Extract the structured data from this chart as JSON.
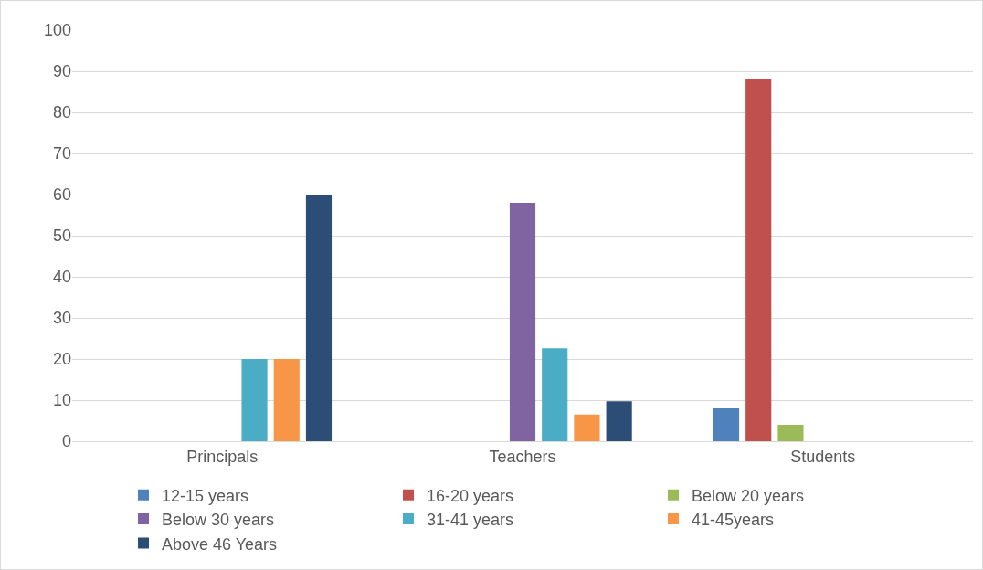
{
  "chart_data": {
    "type": "bar",
    "categories": [
      "Principals",
      "Teachers",
      "Students"
    ],
    "series": [
      {
        "name": "12-15 years",
        "color": "#4f81bd",
        "values": [
          0,
          0,
          8
        ]
      },
      {
        "name": "16-20 years",
        "color": "#c0504d",
        "values": [
          0,
          0,
          88
        ]
      },
      {
        "name": "Below 20 years",
        "color": "#9bbb59",
        "values": [
          0,
          0,
          4
        ]
      },
      {
        "name": "Below 30 years",
        "color": "#8064a2",
        "values": [
          0,
          58,
          0
        ]
      },
      {
        "name": "31-41 years",
        "color": "#4bacc6",
        "values": [
          20,
          22.6,
          0
        ]
      },
      {
        "name": "41-45years",
        "color": "#f79646",
        "values": [
          20,
          6.5,
          0
        ]
      },
      {
        "name": "Above 46 Years",
        "color": "#2c4d75",
        "values": [
          60,
          9.7,
          0
        ]
      }
    ],
    "ylim": [
      0,
      100
    ],
    "yticks": [
      0,
      10,
      20,
      30,
      40,
      50,
      60,
      70,
      80,
      90,
      100
    ],
    "grid": "y",
    "legend": "bottom"
  }
}
